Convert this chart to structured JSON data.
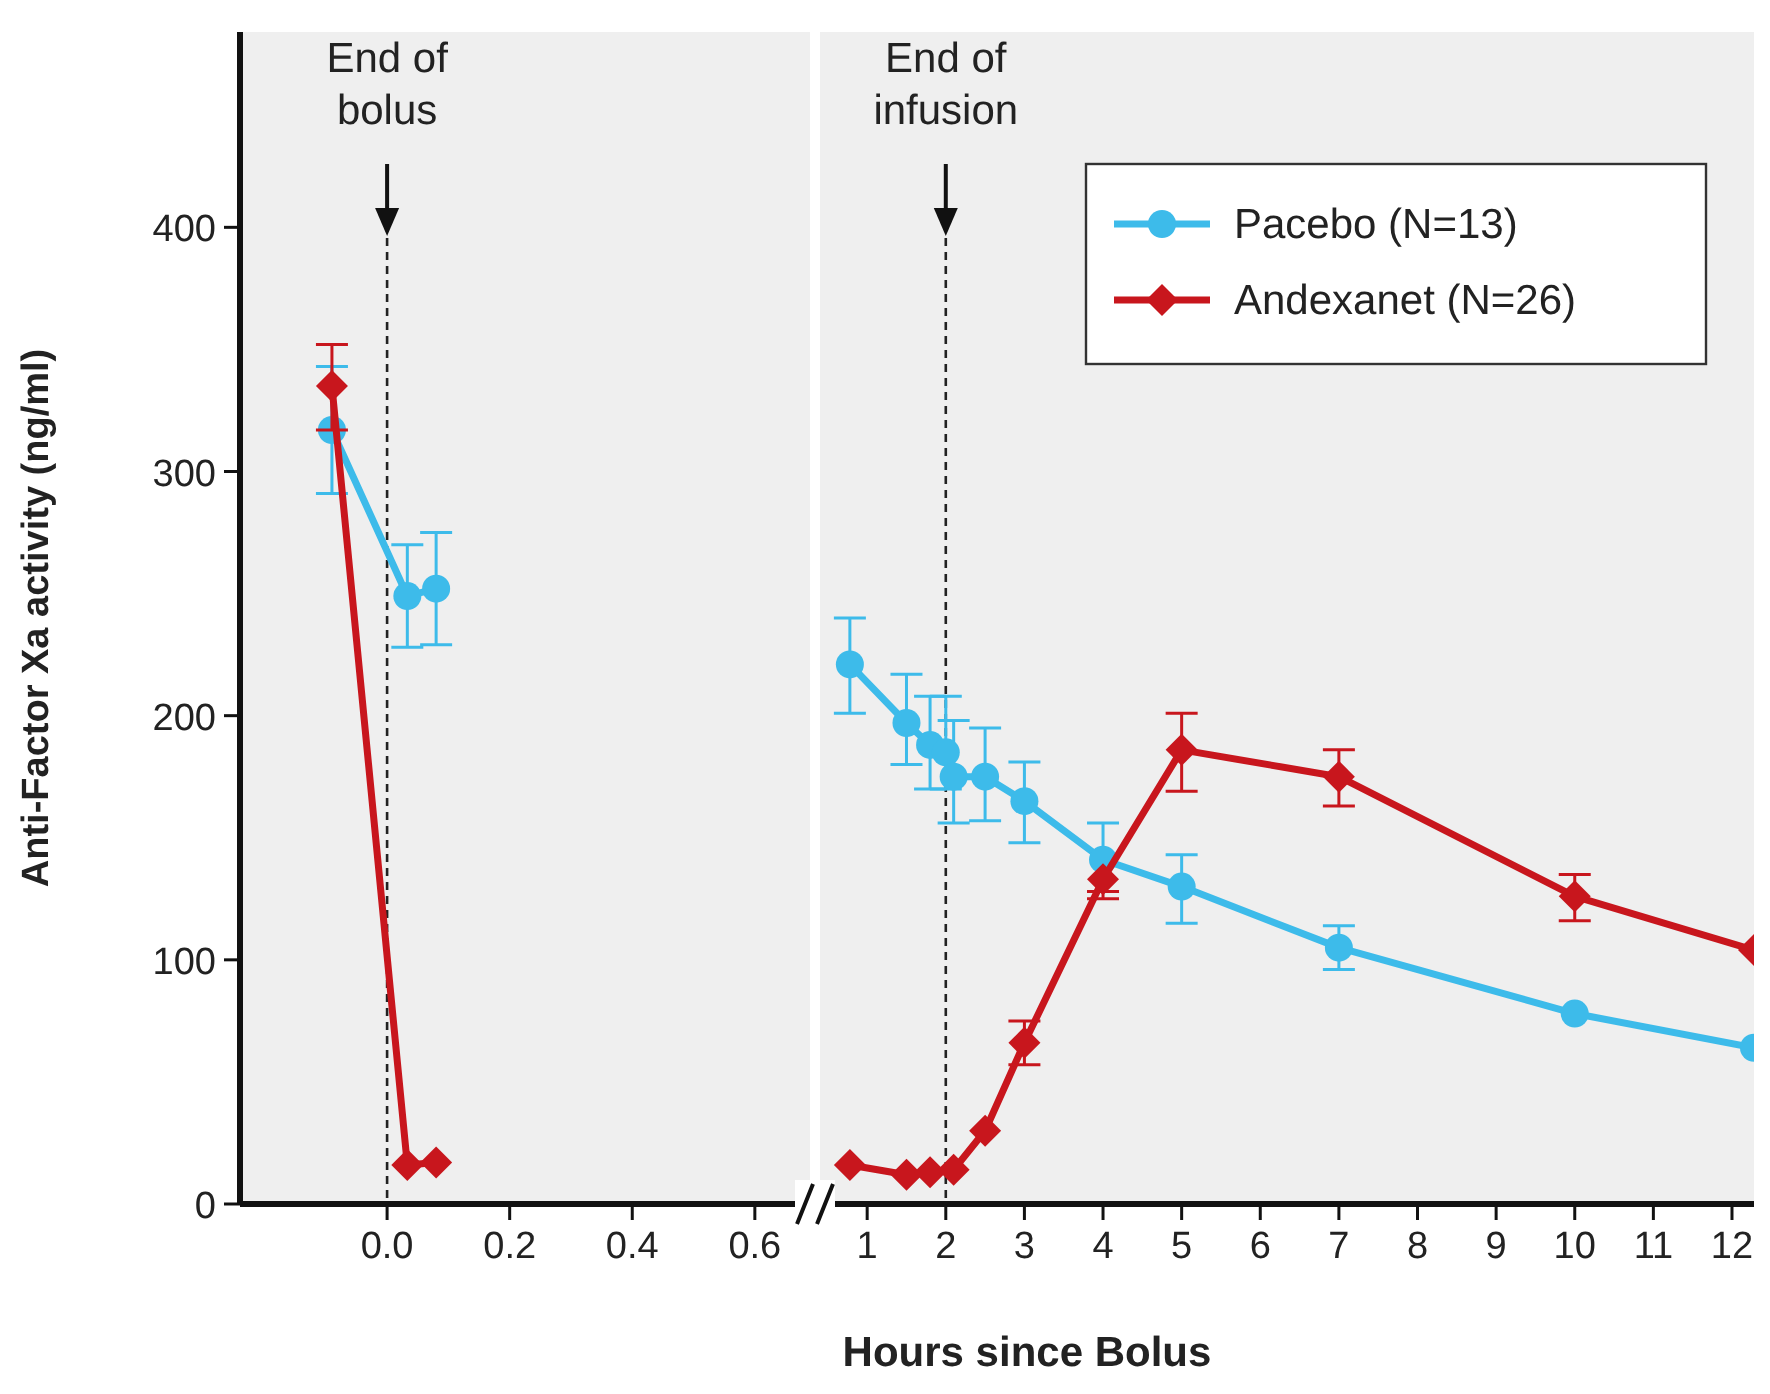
{
  "chart_data": [
    {
      "type": "line",
      "ylabel": "Anti-Factor Xa activity (ng/ml)",
      "xlim": [
        -0.24,
        0.69
      ],
      "xticks": [
        {
          "value": 0,
          "label": "0.0"
        },
        0.2,
        0.4,
        0.6
      ],
      "ylim": [
        0,
        480
      ],
      "yticks": [
        0,
        100,
        200,
        300,
        400
      ],
      "tick_labels": "xy",
      "grid": false,
      "line_style": "solid",
      "series": [
        {
          "color": "#3dbbea",
          "marker": "circle",
          "x": [
            -0.09,
            0.033,
            0.08
          ],
          "values": [
            317,
            249,
            252
          ],
          "errors": [
            [
              291,
              343
            ],
            [
              228,
              270
            ],
            [
              229,
              275
            ]
          ]
        },
        {
          "color": "#c8161d",
          "marker": "diamond",
          "x": [
            -0.09,
            0.033,
            0.08
          ],
          "values": [
            335,
            16,
            17
          ],
          "errors": [
            [
              317,
              352
            ],
            null,
            null
          ]
        }
      ],
      "ref_lines": [
        {
          "axis": "x",
          "value": 0,
          "label": "End of bolus",
          "line_style": "dashed"
        }
      ]
    },
    {
      "type": "line",
      "xlabel": "Hours since Bolus",
      "xlim": [
        0.4,
        12.28
      ],
      "xticks": [
        1,
        2,
        3,
        4,
        5,
        6,
        7,
        8,
        9,
        10,
        11,
        12
      ],
      "ylim": [
        0,
        480
      ],
      "tick_labels": "x",
      "grid": false,
      "legend": "top right",
      "line_style": "solid",
      "series": [
        {
          "name": "Pacebo (N=13)",
          "color": "#3dbbea",
          "marker": "circle",
          "x": [
            0.78,
            1.5,
            1.8,
            2,
            2.1,
            2.5,
            3,
            4,
            5,
            7,
            10,
            12.28
          ],
          "values": [
            221,
            197,
            188,
            185,
            175,
            175,
            165,
            141,
            130,
            105,
            78,
            64
          ],
          "errors": [
            [
              201,
              240
            ],
            [
              180,
              217
            ],
            [
              170,
              208
            ],
            [
              170,
              208
            ],
            [
              156,
              198
            ],
            [
              157,
              195
            ],
            [
              148,
              181
            ],
            [
              128,
              156
            ],
            [
              115,
              143
            ],
            [
              96,
              114
            ],
            null,
            null
          ]
        },
        {
          "name": "Andexanet (N=26)",
          "color": "#c8161d",
          "marker": "diamond",
          "x": [
            0.78,
            1.5,
            1.8,
            2.1,
            2.5,
            3,
            4,
            5,
            7,
            10,
            12.28
          ],
          "values": [
            16,
            12,
            13,
            14,
            30,
            66,
            133,
            186,
            175,
            126,
            104
          ],
          "errors": [
            null,
            null,
            null,
            null,
            null,
            [
              57,
              75
            ],
            [
              125,
              128
            ],
            [
              169,
              201
            ],
            [
              163,
              186
            ],
            [
              116,
              135
            ],
            null
          ]
        }
      ],
      "ref_lines": [
        {
          "axis": "x",
          "value": 2,
          "label": "End of infusion",
          "line_style": "dashed"
        }
      ]
    }
  ]
}
